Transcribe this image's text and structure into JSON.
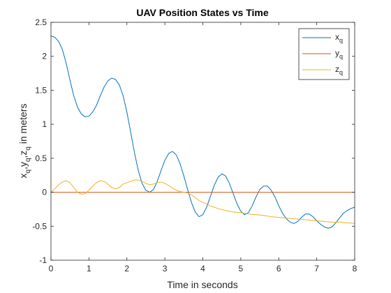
{
  "chart_data": {
    "type": "line",
    "title": "UAV Position States vs Time",
    "xlabel": "Time in seconds",
    "ylabel": {
      "parts": [
        "x",
        "q",
        ",y",
        "q",
        ",z",
        "q",
        "  in meters"
      ]
    },
    "xlim": [
      0,
      8
    ],
    "ylim": [
      -1,
      2.5
    ],
    "xticks": [
      0,
      1,
      2,
      3,
      4,
      5,
      6,
      7,
      8
    ],
    "yticks": [
      -1,
      -0.5,
      0,
      0.5,
      1,
      1.5,
      2,
      2.5
    ],
    "grid": false,
    "legend_position": "top-right",
    "series": [
      {
        "name": {
          "base": "x",
          "sub": "q"
        },
        "color": "#0072BD",
        "points": [
          [
            0,
            2.3
          ],
          [
            0.1,
            2.28
          ],
          [
            0.2,
            2.22
          ],
          [
            0.3,
            2.1
          ],
          [
            0.4,
            1.9
          ],
          [
            0.5,
            1.65
          ],
          [
            0.6,
            1.42
          ],
          [
            0.7,
            1.25
          ],
          [
            0.8,
            1.15
          ],
          [
            0.9,
            1.11
          ],
          [
            1.0,
            1.12
          ],
          [
            1.1,
            1.18
          ],
          [
            1.2,
            1.28
          ],
          [
            1.3,
            1.42
          ],
          [
            1.4,
            1.55
          ],
          [
            1.5,
            1.64
          ],
          [
            1.6,
            1.68
          ],
          [
            1.7,
            1.66
          ],
          [
            1.8,
            1.58
          ],
          [
            1.9,
            1.42
          ],
          [
            2.0,
            1.18
          ],
          [
            2.1,
            0.88
          ],
          [
            2.2,
            0.58
          ],
          [
            2.3,
            0.32
          ],
          [
            2.4,
            0.13
          ],
          [
            2.5,
            0.03
          ],
          [
            2.6,
            0.0
          ],
          [
            2.7,
            0.04
          ],
          [
            2.8,
            0.16
          ],
          [
            2.9,
            0.32
          ],
          [
            3.0,
            0.47
          ],
          [
            3.1,
            0.57
          ],
          [
            3.2,
            0.6
          ],
          [
            3.3,
            0.55
          ],
          [
            3.4,
            0.42
          ],
          [
            3.5,
            0.24
          ],
          [
            3.6,
            0.04
          ],
          [
            3.7,
            -0.15
          ],
          [
            3.8,
            -0.29
          ],
          [
            3.9,
            -0.36
          ],
          [
            4.0,
            -0.33
          ],
          [
            4.1,
            -0.22
          ],
          [
            4.2,
            -0.06
          ],
          [
            4.3,
            0.1
          ],
          [
            4.4,
            0.22
          ],
          [
            4.5,
            0.27
          ],
          [
            4.6,
            0.24
          ],
          [
            4.7,
            0.13
          ],
          [
            4.8,
            -0.02
          ],
          [
            4.9,
            -0.17
          ],
          [
            5.0,
            -0.28
          ],
          [
            5.1,
            -0.33
          ],
          [
            5.2,
            -0.3
          ],
          [
            5.3,
            -0.2
          ],
          [
            5.4,
            -0.07
          ],
          [
            5.5,
            0.04
          ],
          [
            5.6,
            0.09
          ],
          [
            5.7,
            0.09
          ],
          [
            5.8,
            0.03
          ],
          [
            5.9,
            -0.07
          ],
          [
            6.0,
            -0.2
          ],
          [
            6.1,
            -0.31
          ],
          [
            6.2,
            -0.39
          ],
          [
            6.3,
            -0.44
          ],
          [
            6.4,
            -0.46
          ],
          [
            6.5,
            -0.43
          ],
          [
            6.6,
            -0.37
          ],
          [
            6.7,
            -0.32
          ],
          [
            6.8,
            -0.32
          ],
          [
            6.9,
            -0.36
          ],
          [
            7.0,
            -0.42
          ],
          [
            7.1,
            -0.47
          ],
          [
            7.2,
            -0.51
          ],
          [
            7.3,
            -0.53
          ],
          [
            7.4,
            -0.51
          ],
          [
            7.5,
            -0.45
          ],
          [
            7.6,
            -0.38
          ],
          [
            7.7,
            -0.31
          ],
          [
            7.8,
            -0.27
          ],
          [
            7.9,
            -0.24
          ],
          [
            8.0,
            -0.22
          ]
        ]
      },
      {
        "name": {
          "base": "y",
          "sub": "q"
        },
        "color": "#D95319",
        "points": [
          [
            0,
            0
          ],
          [
            8,
            0
          ]
        ]
      },
      {
        "name": {
          "base": "z",
          "sub": "q"
        },
        "color": "#EDB120",
        "points": [
          [
            0,
            0
          ],
          [
            0.1,
            0.05
          ],
          [
            0.2,
            0.11
          ],
          [
            0.3,
            0.15
          ],
          [
            0.4,
            0.17
          ],
          [
            0.5,
            0.14
          ],
          [
            0.6,
            0.07
          ],
          [
            0.7,
            0.0
          ],
          [
            0.8,
            -0.03
          ],
          [
            0.9,
            -0.02
          ],
          [
            1.0,
            0.03
          ],
          [
            1.1,
            0.09
          ],
          [
            1.2,
            0.14
          ],
          [
            1.3,
            0.17
          ],
          [
            1.4,
            0.16
          ],
          [
            1.5,
            0.12
          ],
          [
            1.6,
            0.07
          ],
          [
            1.7,
            0.05
          ],
          [
            1.8,
            0.07
          ],
          [
            1.9,
            0.12
          ],
          [
            2.0,
            0.14
          ],
          [
            2.1,
            0.16
          ],
          [
            2.2,
            0.18
          ],
          [
            2.3,
            0.18
          ],
          [
            2.4,
            0.16
          ],
          [
            2.5,
            0.13
          ],
          [
            2.6,
            0.11
          ],
          [
            2.7,
            0.12
          ],
          [
            2.8,
            0.14
          ],
          [
            2.9,
            0.15
          ],
          [
            3.0,
            0.13
          ],
          [
            3.1,
            0.1
          ],
          [
            3.2,
            0.06
          ],
          [
            3.3,
            0.03
          ],
          [
            3.4,
            0.01
          ],
          [
            3.5,
            0.0
          ],
          [
            3.6,
            -0.01
          ],
          [
            3.7,
            -0.04
          ],
          [
            3.8,
            -0.08
          ],
          [
            3.9,
            -0.12
          ],
          [
            4.0,
            -0.15
          ],
          [
            4.2,
            -0.2
          ],
          [
            4.4,
            -0.24
          ],
          [
            4.6,
            -0.27
          ],
          [
            4.8,
            -0.29
          ],
          [
            5.0,
            -0.3
          ],
          [
            5.2,
            -0.32
          ],
          [
            5.4,
            -0.33
          ],
          [
            5.6,
            -0.34
          ],
          [
            5.8,
            -0.36
          ],
          [
            6.0,
            -0.37
          ],
          [
            6.2,
            -0.38
          ],
          [
            6.4,
            -0.39
          ],
          [
            6.6,
            -0.4
          ],
          [
            6.8,
            -0.41
          ],
          [
            7.0,
            -0.42
          ],
          [
            7.2,
            -0.43
          ],
          [
            7.4,
            -0.44
          ],
          [
            7.6,
            -0.44
          ],
          [
            7.8,
            -0.45
          ],
          [
            8.0,
            -0.46
          ]
        ]
      }
    ]
  }
}
